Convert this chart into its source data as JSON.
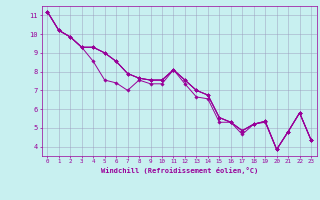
{
  "xlabel": "Windchill (Refroidissement éolien,°C)",
  "bg_color": "#c8f0f0",
  "line_color": "#990099",
  "grid_color": "#9999bb",
  "xlim": [
    -0.5,
    23.5
  ],
  "ylim": [
    3.5,
    11.5
  ],
  "yticks": [
    4,
    5,
    6,
    7,
    8,
    9,
    10,
    11
  ],
  "xticks": [
    0,
    1,
    2,
    3,
    4,
    5,
    6,
    7,
    8,
    9,
    10,
    11,
    12,
    13,
    14,
    15,
    16,
    17,
    18,
    19,
    20,
    21,
    22,
    23
  ],
  "series": [
    [
      11.2,
      10.2,
      9.85,
      9.3,
      8.55,
      7.55,
      7.4,
      7.0,
      7.55,
      7.35,
      7.35,
      8.1,
      7.35,
      6.65,
      6.55,
      5.3,
      5.3,
      4.65,
      5.2,
      5.3,
      3.85,
      4.8,
      5.8,
      4.35
    ],
    [
      11.2,
      10.2,
      9.85,
      9.3,
      9.3,
      9.0,
      8.55,
      7.9,
      7.65,
      7.55,
      7.55,
      8.1,
      7.55,
      7.0,
      6.75,
      5.55,
      5.3,
      4.85,
      5.2,
      5.35,
      3.85,
      4.8,
      5.8,
      4.35
    ],
    [
      11.2,
      10.2,
      9.85,
      9.3,
      9.3,
      9.0,
      8.55,
      7.9,
      7.65,
      7.55,
      7.55,
      8.1,
      7.55,
      7.0,
      6.75,
      5.55,
      5.3,
      4.85,
      5.2,
      5.35,
      3.85,
      4.8,
      5.8,
      4.35
    ],
    [
      11.2,
      10.2,
      9.85,
      9.3,
      9.3,
      9.0,
      8.55,
      7.9,
      7.65,
      7.55,
      7.55,
      8.1,
      7.55,
      7.0,
      6.75,
      5.55,
      5.3,
      4.85,
      5.2,
      5.35,
      3.85,
      4.8,
      5.8,
      4.35
    ]
  ]
}
